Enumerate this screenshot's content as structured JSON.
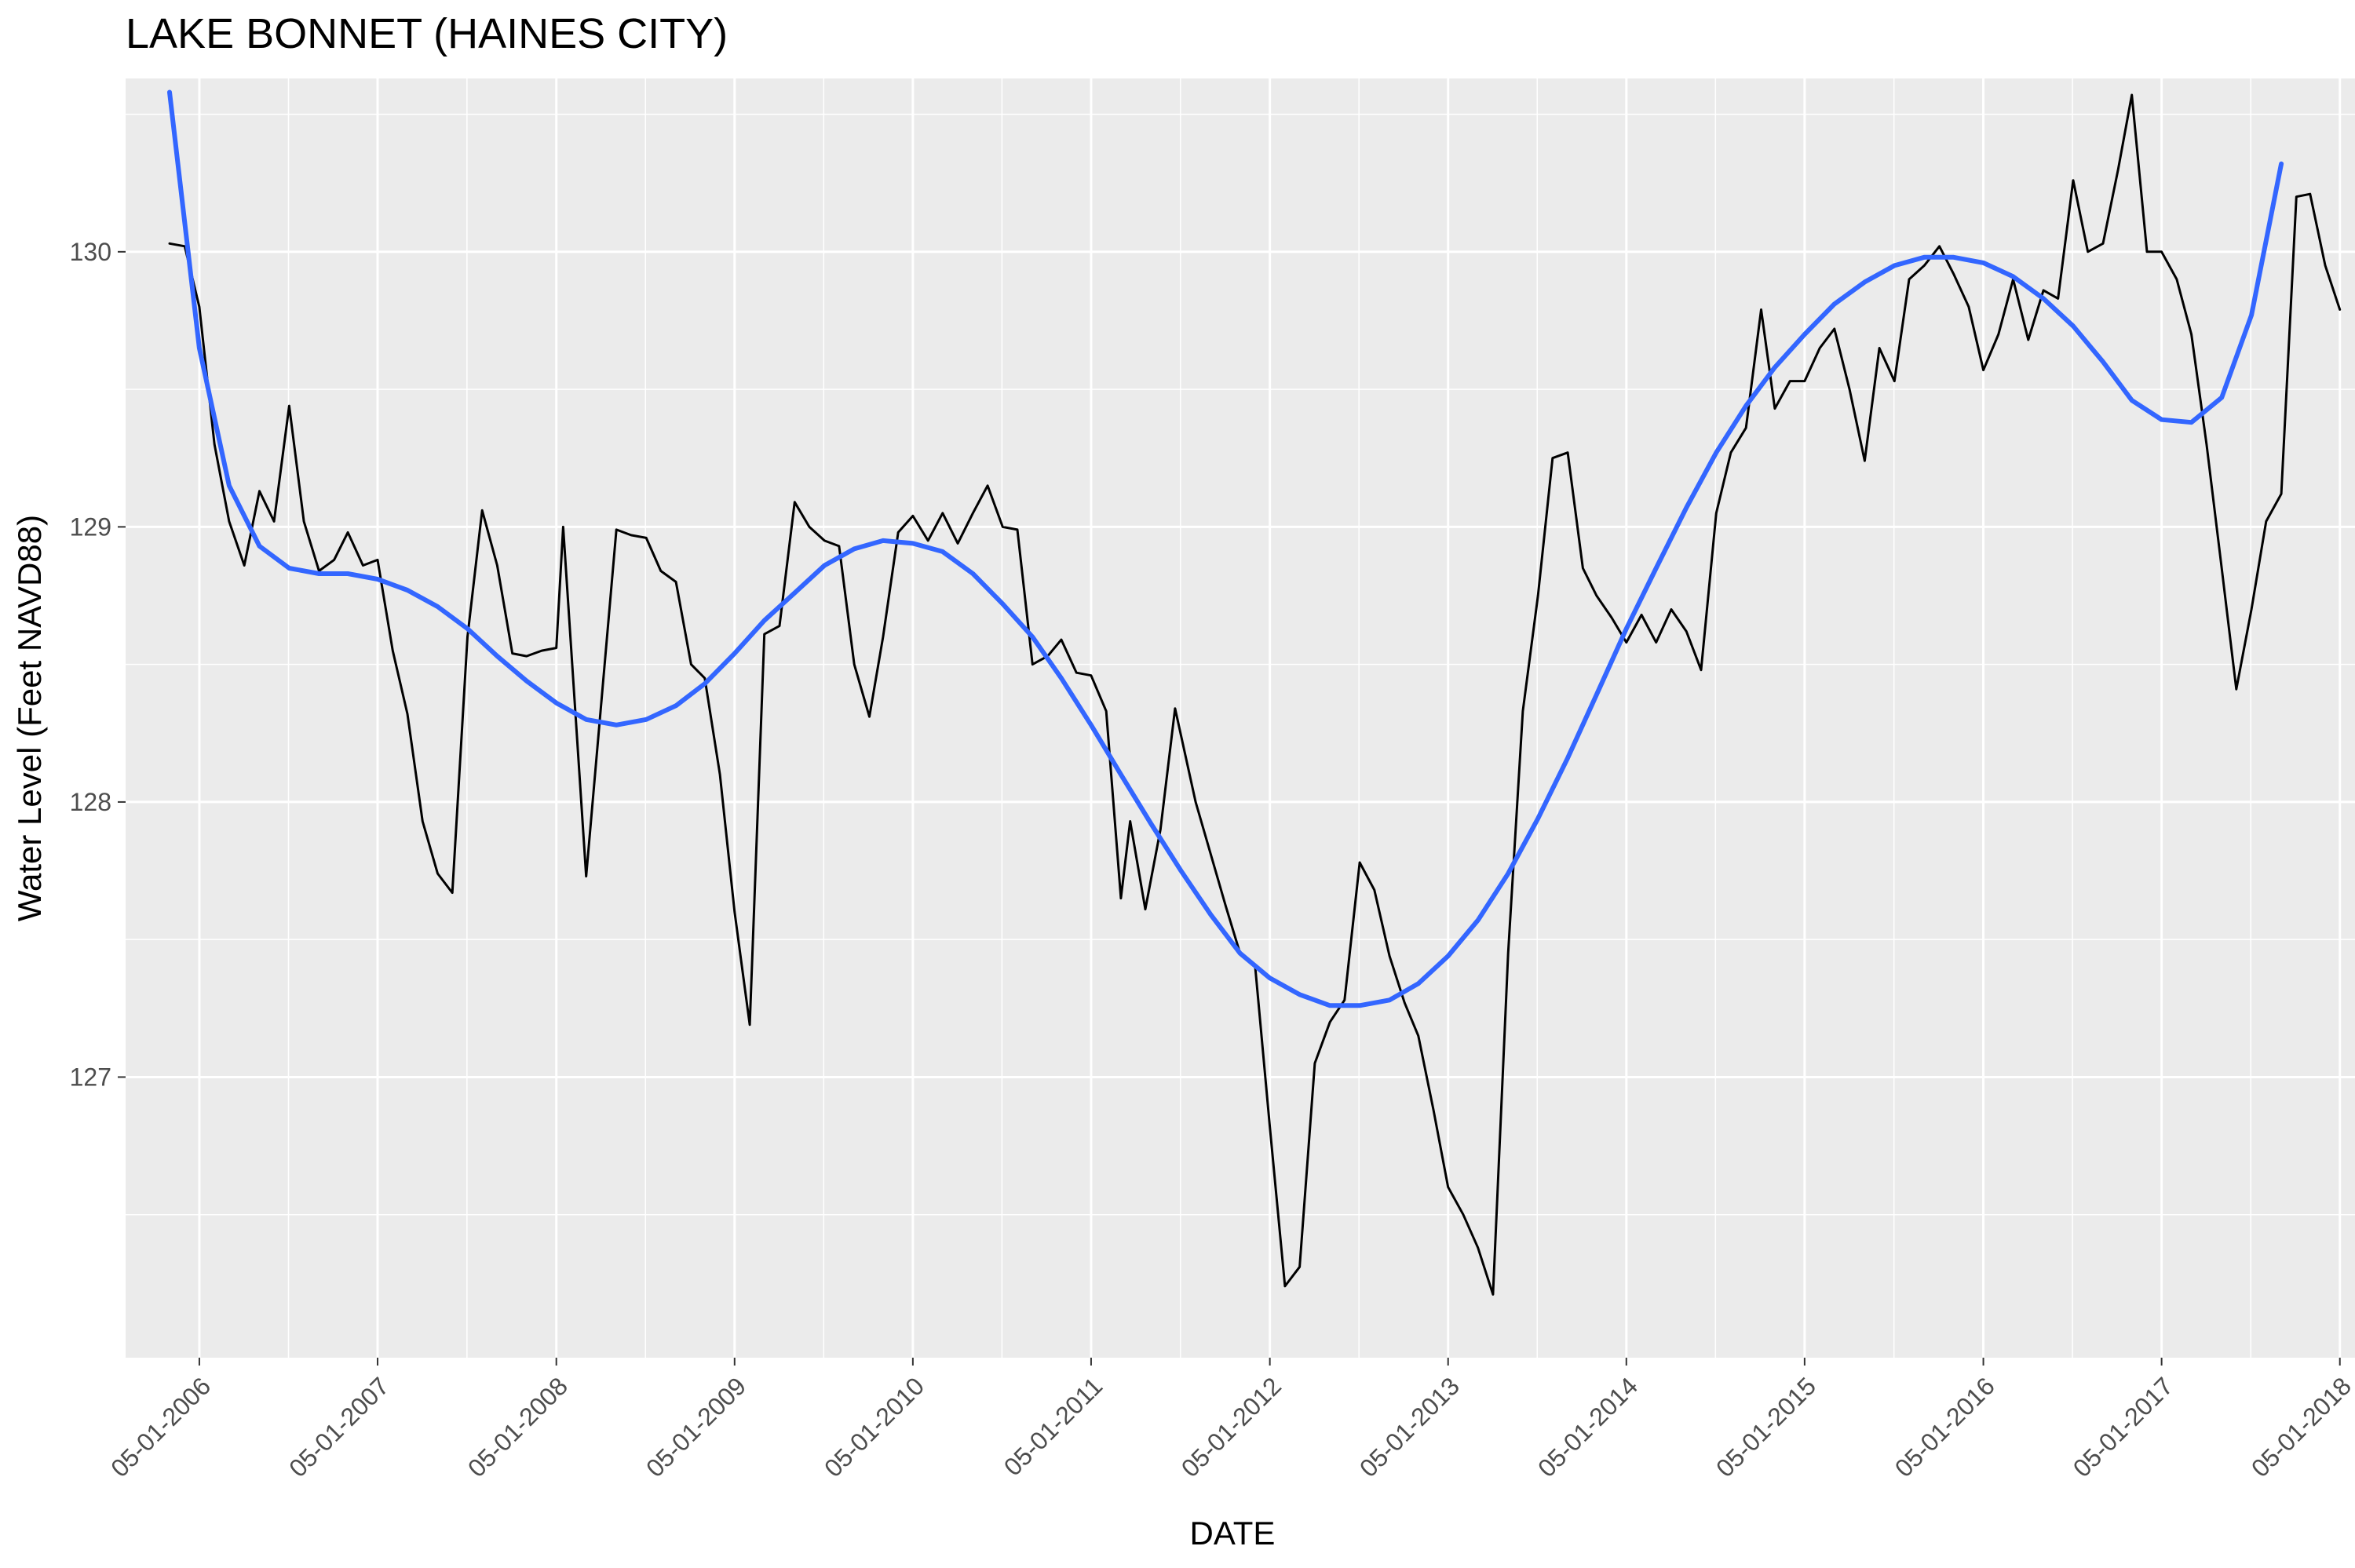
{
  "chart_data": {
    "type": "line",
    "title": "LAKE BONNET (HAINES CITY)",
    "xlabel": "DATE",
    "ylabel": "Water Level (Feet NAVD88)",
    "x_ticks": [
      "05-01-2006",
      "05-01-2007",
      "05-01-2008",
      "05-01-2009",
      "05-01-2010",
      "05-01-2011",
      "05-01-2012",
      "05-01-2013",
      "05-01-2014",
      "05-01-2015",
      "05-01-2016",
      "05-01-2017",
      "05-01-2018"
    ],
    "y_ticks": [
      127,
      128,
      129,
      130
    ],
    "xlim": [
      "2005-12-01",
      "2018-06-01"
    ],
    "ylim": [
      125.98,
      130.63
    ],
    "grid": true,
    "series": [
      {
        "style": "observed",
        "color": "#000000",
        "points": [
          [
            "2006-03-01",
            130.03
          ],
          [
            "2006-04-01",
            130.02
          ],
          [
            "2006-05-01",
            129.8
          ],
          [
            "2006-06-01",
            129.3
          ],
          [
            "2006-07-01",
            129.02
          ],
          [
            "2006-08-01",
            128.86
          ],
          [
            "2006-09-01",
            129.13
          ],
          [
            "2006-10-01",
            129.02
          ],
          [
            "2006-11-01",
            129.44
          ],
          [
            "2006-12-01",
            129.02
          ],
          [
            "2007-01-01",
            128.84
          ],
          [
            "2007-02-01",
            128.88
          ],
          [
            "2007-03-01",
            128.98
          ],
          [
            "2007-04-01",
            128.86
          ],
          [
            "2007-05-01",
            128.88
          ],
          [
            "2007-06-01",
            128.55
          ],
          [
            "2007-07-01",
            128.32
          ],
          [
            "2007-08-01",
            127.93
          ],
          [
            "2007-09-01",
            127.74
          ],
          [
            "2007-10-01",
            127.67
          ],
          [
            "2007-11-01",
            128.6
          ],
          [
            "2007-12-01",
            129.06
          ],
          [
            "2008-01-01",
            128.86
          ],
          [
            "2008-02-01",
            128.54
          ],
          [
            "2008-03-01",
            128.53
          ],
          [
            "2008-04-01",
            128.55
          ],
          [
            "2008-05-01",
            128.56
          ],
          [
            "2008-05-15",
            129.0
          ],
          [
            "2008-07-01",
            127.73
          ],
          [
            "2008-09-01",
            128.99
          ],
          [
            "2008-10-01",
            128.97
          ],
          [
            "2008-11-01",
            128.96
          ],
          [
            "2008-12-01",
            128.84
          ],
          [
            "2009-01-01",
            128.8
          ],
          [
            "2009-02-01",
            128.5
          ],
          [
            "2009-03-01",
            128.45
          ],
          [
            "2009-04-01",
            128.1
          ],
          [
            "2009-05-01",
            127.6
          ],
          [
            "2009-06-01",
            127.19
          ],
          [
            "2009-07-01",
            128.61
          ],
          [
            "2009-08-01",
            128.64
          ],
          [
            "2009-09-01",
            129.09
          ],
          [
            "2009-10-01",
            129.0
          ],
          [
            "2009-11-01",
            128.95
          ],
          [
            "2009-12-01",
            128.93
          ],
          [
            "2010-01-01",
            128.5
          ],
          [
            "2010-02-01",
            128.31
          ],
          [
            "2010-03-01",
            128.6
          ],
          [
            "2010-04-01",
            128.98
          ],
          [
            "2010-05-01",
            129.04
          ],
          [
            "2010-06-01",
            128.95
          ],
          [
            "2010-07-01",
            129.05
          ],
          [
            "2010-08-01",
            128.94
          ],
          [
            "2010-09-01",
            129.05
          ],
          [
            "2010-10-01",
            129.15
          ],
          [
            "2010-11-01",
            129.0
          ],
          [
            "2010-12-01",
            128.99
          ],
          [
            "2011-01-01",
            128.5
          ],
          [
            "2011-02-01",
            128.53
          ],
          [
            "2011-03-01",
            128.59
          ],
          [
            "2011-04-01",
            128.47
          ],
          [
            "2011-05-01",
            128.46
          ],
          [
            "2011-06-01",
            128.33
          ],
          [
            "2011-07-01",
            127.65
          ],
          [
            "2011-07-20",
            127.93
          ],
          [
            "2011-08-20",
            127.61
          ],
          [
            "2011-09-20",
            127.9
          ],
          [
            "2011-10-20",
            128.34
          ],
          [
            "2011-12-01",
            128.0
          ],
          [
            "2012-02-01",
            127.62
          ],
          [
            "2012-03-01",
            127.45
          ],
          [
            "2012-04-01",
            127.4
          ],
          [
            "2012-05-01",
            126.82
          ],
          [
            "2012-06-01",
            126.24
          ],
          [
            "2012-07-01",
            126.31
          ],
          [
            "2012-08-01",
            127.05
          ],
          [
            "2012-09-01",
            127.2
          ],
          [
            "2012-10-01",
            127.28
          ],
          [
            "2012-11-01",
            127.78
          ],
          [
            "2012-12-01",
            127.68
          ],
          [
            "2013-01-01",
            127.44
          ],
          [
            "2013-02-01",
            127.27
          ],
          [
            "2013-03-01",
            127.15
          ],
          [
            "2013-04-01",
            126.88
          ],
          [
            "2013-05-01",
            126.6
          ],
          [
            "2013-06-01",
            126.5
          ],
          [
            "2013-07-01",
            126.38
          ],
          [
            "2013-08-01",
            126.21
          ],
          [
            "2013-09-01",
            127.45
          ],
          [
            "2013-10-01",
            128.33
          ],
          [
            "2013-11-01",
            128.75
          ],
          [
            "2013-12-01",
            129.25
          ],
          [
            "2014-01-01",
            129.27
          ],
          [
            "2014-02-01",
            128.85
          ],
          [
            "2014-03-01",
            128.75
          ],
          [
            "2014-04-01",
            128.67
          ],
          [
            "2014-05-01",
            128.58
          ],
          [
            "2014-06-01",
            128.68
          ],
          [
            "2014-07-01",
            128.58
          ],
          [
            "2014-08-01",
            128.7
          ],
          [
            "2014-09-01",
            128.62
          ],
          [
            "2014-10-01",
            128.48
          ],
          [
            "2014-11-01",
            129.05
          ],
          [
            "2014-12-01",
            129.27
          ],
          [
            "2015-01-01",
            129.36
          ],
          [
            "2015-02-01",
            129.79
          ],
          [
            "2015-03-01",
            129.43
          ],
          [
            "2015-04-01",
            129.53
          ],
          [
            "2015-05-01",
            129.53
          ],
          [
            "2015-06-01",
            129.65
          ],
          [
            "2015-07-01",
            129.72
          ],
          [
            "2015-08-01",
            129.5
          ],
          [
            "2015-09-01",
            129.24
          ],
          [
            "2015-10-01",
            129.65
          ],
          [
            "2015-11-01",
            129.53
          ],
          [
            "2015-12-01",
            129.9
          ],
          [
            "2016-01-01",
            129.95
          ],
          [
            "2016-02-01",
            130.02
          ],
          [
            "2016-03-01",
            129.92
          ],
          [
            "2016-04-01",
            129.8
          ],
          [
            "2016-05-01",
            129.57
          ],
          [
            "2016-06-01",
            129.7
          ],
          [
            "2016-07-01",
            129.9
          ],
          [
            "2016-08-01",
            129.68
          ],
          [
            "2016-09-01",
            129.86
          ],
          [
            "2016-10-01",
            129.83
          ],
          [
            "2016-11-01",
            130.26
          ],
          [
            "2016-12-01",
            130.0
          ],
          [
            "2017-01-01",
            130.03
          ],
          [
            "2017-02-01",
            130.3
          ],
          [
            "2017-03-01",
            130.57
          ],
          [
            "2017-04-01",
            130.0
          ],
          [
            "2017-05-01",
            130.0
          ],
          [
            "2017-06-01",
            129.9
          ],
          [
            "2017-07-01",
            129.7
          ],
          [
            "2017-08-01",
            129.3
          ],
          [
            "2017-09-01",
            128.85
          ],
          [
            "2017-10-01",
            128.41
          ],
          [
            "2017-11-01",
            128.7
          ],
          [
            "2017-12-01",
            129.02
          ],
          [
            "2018-01-01",
            129.12
          ],
          [
            "2018-02-01",
            130.2
          ],
          [
            "2018-03-01",
            130.21
          ],
          [
            "2018-04-01",
            129.95
          ],
          [
            "2018-05-01",
            129.79
          ]
        ]
      },
      {
        "style": "smoothed",
        "color": "#3366FF",
        "points": [
          [
            "2006-03-01",
            130.58
          ],
          [
            "2006-05-01",
            129.65
          ],
          [
            "2006-07-01",
            129.15
          ],
          [
            "2006-09-01",
            128.93
          ],
          [
            "2006-11-01",
            128.85
          ],
          [
            "2007-01-01",
            128.83
          ],
          [
            "2007-03-01",
            128.83
          ],
          [
            "2007-05-01",
            128.81
          ],
          [
            "2007-07-01",
            128.77
          ],
          [
            "2007-09-01",
            128.71
          ],
          [
            "2007-11-01",
            128.63
          ],
          [
            "2008-01-01",
            128.53
          ],
          [
            "2008-03-01",
            128.44
          ],
          [
            "2008-05-01",
            128.36
          ],
          [
            "2008-07-01",
            128.3
          ],
          [
            "2008-09-01",
            128.28
          ],
          [
            "2008-11-01",
            128.3
          ],
          [
            "2009-01-01",
            128.35
          ],
          [
            "2009-03-01",
            128.43
          ],
          [
            "2009-05-01",
            128.54
          ],
          [
            "2009-07-01",
            128.66
          ],
          [
            "2009-09-01",
            128.76
          ],
          [
            "2009-11-01",
            128.86
          ],
          [
            "2010-01-01",
            128.92
          ],
          [
            "2010-03-01",
            128.95
          ],
          [
            "2010-05-01",
            128.94
          ],
          [
            "2010-07-01",
            128.91
          ],
          [
            "2010-09-01",
            128.83
          ],
          [
            "2010-11-01",
            128.72
          ],
          [
            "2011-01-01",
            128.6
          ],
          [
            "2011-03-01",
            128.45
          ],
          [
            "2011-05-01",
            128.28
          ],
          [
            "2011-07-01",
            128.1
          ],
          [
            "2011-09-01",
            127.92
          ],
          [
            "2011-11-01",
            127.75
          ],
          [
            "2012-01-01",
            127.59
          ],
          [
            "2012-03-01",
            127.45
          ],
          [
            "2012-05-01",
            127.36
          ],
          [
            "2012-07-01",
            127.3
          ],
          [
            "2012-09-01",
            127.26
          ],
          [
            "2012-11-01",
            127.26
          ],
          [
            "2013-01-01",
            127.28
          ],
          [
            "2013-03-01",
            127.34
          ],
          [
            "2013-05-01",
            127.44
          ],
          [
            "2013-07-01",
            127.57
          ],
          [
            "2013-09-01",
            127.74
          ],
          [
            "2013-11-01",
            127.94
          ],
          [
            "2014-01-01",
            128.16
          ],
          [
            "2014-03-01",
            128.39
          ],
          [
            "2014-05-01",
            128.63
          ],
          [
            "2014-07-01",
            128.85
          ],
          [
            "2014-09-01",
            129.07
          ],
          [
            "2014-11-01",
            129.27
          ],
          [
            "2015-01-01",
            129.44
          ],
          [
            "2015-03-01",
            129.58
          ],
          [
            "2015-05-01",
            129.7
          ],
          [
            "2015-07-01",
            129.81
          ],
          [
            "2015-09-01",
            129.89
          ],
          [
            "2015-11-01",
            129.95
          ],
          [
            "2016-01-01",
            129.98
          ],
          [
            "2016-03-01",
            129.98
          ],
          [
            "2016-05-01",
            129.96
          ],
          [
            "2016-07-01",
            129.91
          ],
          [
            "2016-09-01",
            129.83
          ],
          [
            "2016-11-01",
            129.73
          ],
          [
            "2017-01-01",
            129.6
          ],
          [
            "2017-03-01",
            129.46
          ],
          [
            "2017-05-01",
            129.39
          ],
          [
            "2017-07-01",
            129.38
          ],
          [
            "2017-09-01",
            129.47
          ],
          [
            "2017-11-01",
            129.77
          ],
          [
            "2018-01-01",
            130.32
          ]
        ]
      }
    ]
  }
}
